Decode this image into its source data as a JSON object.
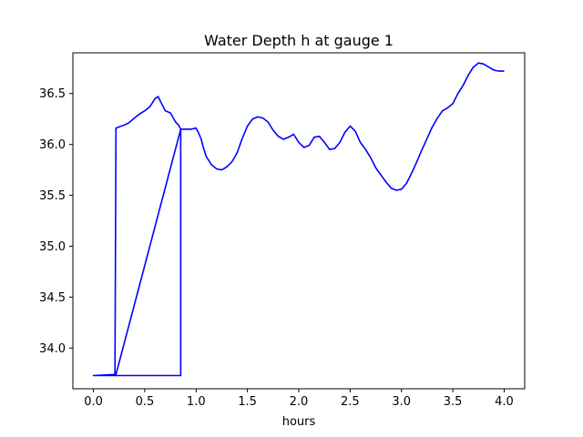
{
  "chart_data": {
    "type": "line",
    "title": "Water Depth h at gauge 1",
    "xlabel": "hours",
    "ylabel": "",
    "xlim": [
      -0.2,
      4.2
    ],
    "ylim": [
      33.6,
      36.9
    ],
    "xticks": [
      0.0,
      0.5,
      1.0,
      1.5,
      2.0,
      2.5,
      3.0,
      3.5,
      4.0
    ],
    "xtick_labels": [
      "0.0",
      "0.5",
      "1.0",
      "1.5",
      "2.0",
      "2.5",
      "3.0",
      "3.5",
      "4.0"
    ],
    "yticks": [
      34.0,
      34.5,
      35.0,
      35.5,
      36.0,
      36.5
    ],
    "ytick_labels": [
      "34.0",
      "34.5",
      "35.0",
      "35.5",
      "36.0",
      "36.5"
    ],
    "grid": false,
    "line_color": "#0000ff",
    "series": [
      {
        "x": [
          0.0,
          0.21,
          0.22,
          0.22,
          0.27,
          0.3,
          0.34,
          0.4,
          0.45,
          0.5,
          0.55,
          0.6,
          0.63,
          0.66,
          0.7,
          0.75,
          0.8,
          0.83,
          0.85,
          0.85,
          0.84,
          0.0,
          0.22,
          0.22,
          0.85,
          0.85,
          0.95,
          1.0,
          1.03,
          1.05,
          1.07,
          1.1,
          1.15,
          1.2,
          1.25,
          1.3,
          1.35,
          1.4,
          1.45,
          1.5,
          1.55,
          1.6,
          1.65,
          1.7,
          1.75,
          1.8,
          1.85,
          1.9,
          1.95,
          2.0,
          2.05,
          2.1,
          2.15,
          2.2,
          2.25,
          2.3,
          2.35,
          2.4,
          2.45,
          2.5,
          2.55,
          2.6,
          2.65,
          2.7,
          2.75,
          2.8,
          2.85,
          2.9,
          2.95,
          3.0,
          3.05,
          3.1,
          3.15,
          3.2,
          3.25,
          3.3,
          3.35,
          3.4,
          3.45,
          3.5,
          3.55,
          3.6,
          3.65,
          3.7,
          3.75,
          3.8,
          3.85,
          3.9,
          3.95,
          4.0
        ],
        "y": [
          33.73,
          33.74,
          36.16,
          36.16,
          36.18,
          36.19,
          36.21,
          36.26,
          36.3,
          36.33,
          36.37,
          36.45,
          36.47,
          36.41,
          36.33,
          36.31,
          36.22,
          36.19,
          36.15,
          33.73,
          33.73,
          33.73,
          33.74,
          33.74,
          36.15,
          36.15,
          36.15,
          36.16,
          36.1,
          36.05,
          35.97,
          35.88,
          35.8,
          35.76,
          35.75,
          35.78,
          35.83,
          35.92,
          36.06,
          36.18,
          36.25,
          36.27,
          36.26,
          36.22,
          36.14,
          36.08,
          36.05,
          36.07,
          36.1,
          36.02,
          35.97,
          35.99,
          36.07,
          36.08,
          36.02,
          35.95,
          35.96,
          36.02,
          36.12,
          36.18,
          36.13,
          36.02,
          35.95,
          35.87,
          35.77,
          35.7,
          35.63,
          35.57,
          35.55,
          35.56,
          35.62,
          35.72,
          35.83,
          35.95,
          36.06,
          36.17,
          36.26,
          36.33,
          36.36,
          36.4,
          36.5,
          36.58,
          36.68,
          36.76,
          36.8,
          36.79,
          36.76,
          36.73,
          36.72,
          36.72
        ]
      }
    ]
  }
}
